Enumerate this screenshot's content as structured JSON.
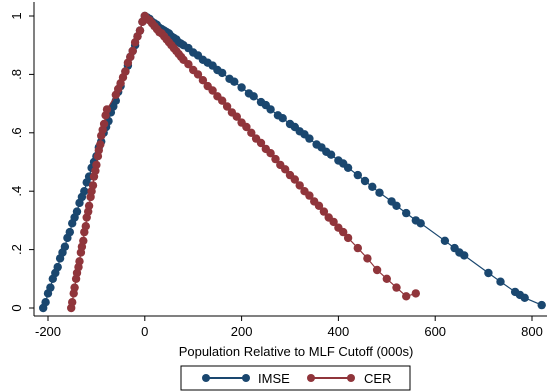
{
  "chart_data": {
    "type": "scatter",
    "xlabel": "Population Relative to MLF Cutoff (000s)",
    "ylabel": "",
    "xlim": [
      -220,
      820
    ],
    "ylim": [
      -0.02,
      1.02
    ],
    "xticks": [
      -200,
      0,
      200,
      400,
      600,
      800
    ],
    "xtick_labels": [
      "-200",
      "0",
      "200",
      "400",
      "600",
      "800"
    ],
    "yticks": [
      0,
      0.2,
      0.4,
      0.6,
      0.8,
      1
    ],
    "ytick_labels": [
      "0",
      ".2",
      ".4",
      ".6",
      ".8",
      "1"
    ],
    "grid": false,
    "legend": "bottom",
    "series": [
      {
        "name": "IMSE",
        "color": "#1a476f",
        "points": [
          [
            -210,
            0.0
          ],
          [
            -205,
            0.02
          ],
          [
            -200,
            0.05
          ],
          [
            -195,
            0.07
          ],
          [
            -190,
            0.1
          ],
          [
            -185,
            0.12
          ],
          [
            -180,
            0.14
          ],
          [
            -175,
            0.17
          ],
          [
            -170,
            0.19
          ],
          [
            -165,
            0.21
          ],
          [
            -160,
            0.24
          ],
          [
            -155,
            0.26
          ],
          [
            -150,
            0.29
          ],
          [
            -145,
            0.31
          ],
          [
            -140,
            0.33
          ],
          [
            -135,
            0.36
          ],
          [
            -130,
            0.38
          ],
          [
            -125,
            0.4
          ],
          [
            -120,
            0.43
          ],
          [
            -115,
            0.45
          ],
          [
            -110,
            0.48
          ],
          [
            -105,
            0.5
          ],
          [
            -100,
            0.52
          ],
          [
            -95,
            0.55
          ],
          [
            -90,
            0.57
          ],
          [
            -85,
            0.6
          ],
          [
            -80,
            0.62
          ],
          [
            -75,
            0.64
          ],
          [
            -70,
            0.67
          ],
          [
            -65,
            0.69
          ],
          [
            -60,
            0.71
          ],
          [
            -55,
            0.74
          ],
          [
            -50,
            0.76
          ],
          [
            -40,
            0.81
          ],
          [
            -35,
            0.83
          ],
          [
            -30,
            0.86
          ],
          [
            -25,
            0.88
          ],
          [
            -20,
            0.9
          ],
          [
            -15,
            0.93
          ],
          [
            -10,
            0.95
          ],
          [
            -5,
            0.98
          ],
          [
            0,
            1.0
          ],
          [
            5,
            0.995
          ],
          [
            10,
            0.99
          ],
          [
            15,
            0.98
          ],
          [
            20,
            0.975
          ],
          [
            25,
            0.97
          ],
          [
            30,
            0.96
          ],
          [
            35,
            0.955
          ],
          [
            40,
            0.95
          ],
          [
            45,
            0.945
          ],
          [
            50,
            0.94
          ],
          [
            55,
            0.93
          ],
          [
            60,
            0.925
          ],
          [
            65,
            0.92
          ],
          [
            70,
            0.91
          ],
          [
            75,
            0.905
          ],
          [
            80,
            0.9
          ],
          [
            90,
            0.89
          ],
          [
            100,
            0.875
          ],
          [
            110,
            0.865
          ],
          [
            120,
            0.85
          ],
          [
            130,
            0.84
          ],
          [
            140,
            0.83
          ],
          [
            150,
            0.815
          ],
          [
            160,
            0.805
          ],
          [
            175,
            0.785
          ],
          [
            185,
            0.775
          ],
          [
            200,
            0.755
          ],
          [
            215,
            0.735
          ],
          [
            225,
            0.725
          ],
          [
            240,
            0.705
          ],
          [
            250,
            0.695
          ],
          [
            260,
            0.68
          ],
          [
            275,
            0.66
          ],
          [
            285,
            0.65
          ],
          [
            300,
            0.63
          ],
          [
            310,
            0.62
          ],
          [
            320,
            0.605
          ],
          [
            330,
            0.595
          ],
          [
            340,
            0.58
          ],
          [
            355,
            0.56
          ],
          [
            365,
            0.55
          ],
          [
            375,
            0.535
          ],
          [
            385,
            0.525
          ],
          [
            400,
            0.505
          ],
          [
            410,
            0.495
          ],
          [
            420,
            0.48
          ],
          [
            440,
            0.455
          ],
          [
            455,
            0.435
          ],
          [
            470,
            0.415
          ],
          [
            485,
            0.395
          ],
          [
            510,
            0.365
          ],
          [
            520,
            0.35
          ],
          [
            540,
            0.325
          ],
          [
            560,
            0.3
          ],
          [
            570,
            0.29
          ],
          [
            620,
            0.23
          ],
          [
            640,
            0.205
          ],
          [
            650,
            0.19
          ],
          [
            660,
            0.18
          ],
          [
            710,
            0.12
          ],
          [
            735,
            0.09
          ],
          [
            765,
            0.055
          ],
          [
            775,
            0.045
          ],
          [
            785,
            0.035
          ],
          [
            820,
            0.01
          ]
        ]
      },
      {
        "name": "CER",
        "color": "#90353b",
        "points": [
          [
            -152,
            0.0
          ],
          [
            -150,
            0.02
          ],
          [
            -147,
            0.05
          ],
          [
            -145,
            0.07
          ],
          [
            -142,
            0.1
          ],
          [
            -140,
            0.12
          ],
          [
            -137,
            0.14
          ],
          [
            -135,
            0.16
          ],
          [
            -132,
            0.19
          ],
          [
            -130,
            0.21
          ],
          [
            -127,
            0.23
          ],
          [
            -125,
            0.26
          ],
          [
            -122,
            0.28
          ],
          [
            -120,
            0.31
          ],
          [
            -117,
            0.33
          ],
          [
            -115,
            0.35
          ],
          [
            -112,
            0.38
          ],
          [
            -110,
            0.4
          ],
          [
            -107,
            0.42
          ],
          [
            -105,
            0.45
          ],
          [
            -102,
            0.47
          ],
          [
            -100,
            0.49
          ],
          [
            -97,
            0.52
          ],
          [
            -95,
            0.54
          ],
          [
            -92,
            0.56
          ],
          [
            -90,
            0.59
          ],
          [
            -87,
            0.61
          ],
          [
            -84,
            0.63
          ],
          [
            -81,
            0.66
          ],
          [
            -78,
            0.68
          ],
          [
            -60,
            0.73
          ],
          [
            -55,
            0.75
          ],
          [
            -50,
            0.77
          ],
          [
            -45,
            0.79
          ],
          [
            -40,
            0.81
          ],
          [
            -35,
            0.84
          ],
          [
            -30,
            0.86
          ],
          [
            -25,
            0.88
          ],
          [
            -20,
            0.91
          ],
          [
            -15,
            0.93
          ],
          [
            -10,
            0.95
          ],
          [
            -5,
            0.98
          ],
          [
            0,
            1.0
          ],
          [
            5,
            0.99
          ],
          [
            10,
            0.985
          ],
          [
            15,
            0.975
          ],
          [
            20,
            0.965
          ],
          [
            25,
            0.955
          ],
          [
            30,
            0.945
          ],
          [
            35,
            0.94
          ],
          [
            40,
            0.93
          ],
          [
            45,
            0.92
          ],
          [
            50,
            0.91
          ],
          [
            55,
            0.9
          ],
          [
            60,
            0.89
          ],
          [
            65,
            0.88
          ],
          [
            70,
            0.87
          ],
          [
            75,
            0.86
          ],
          [
            80,
            0.85
          ],
          [
            90,
            0.835
          ],
          [
            100,
            0.815
          ],
          [
            110,
            0.8
          ],
          [
            120,
            0.78
          ],
          [
            130,
            0.76
          ],
          [
            140,
            0.745
          ],
          [
            150,
            0.725
          ],
          [
            160,
            0.71
          ],
          [
            170,
            0.69
          ],
          [
            180,
            0.67
          ],
          [
            190,
            0.655
          ],
          [
            200,
            0.635
          ],
          [
            210,
            0.62
          ],
          [
            220,
            0.6
          ],
          [
            230,
            0.58
          ],
          [
            240,
            0.565
          ],
          [
            250,
            0.545
          ],
          [
            260,
            0.53
          ],
          [
            270,
            0.51
          ],
          [
            280,
            0.49
          ],
          [
            290,
            0.475
          ],
          [
            300,
            0.455
          ],
          [
            310,
            0.44
          ],
          [
            320,
            0.42
          ],
          [
            330,
            0.4
          ],
          [
            340,
            0.385
          ],
          [
            350,
            0.365
          ],
          [
            360,
            0.35
          ],
          [
            370,
            0.33
          ],
          [
            380,
            0.31
          ],
          [
            390,
            0.295
          ],
          [
            400,
            0.275
          ],
          [
            410,
            0.26
          ],
          [
            420,
            0.24
          ],
          [
            440,
            0.205
          ],
          [
            460,
            0.17
          ],
          [
            480,
            0.13
          ],
          [
            500,
            0.1
          ],
          [
            520,
            0.07
          ],
          [
            540,
            0.04
          ],
          [
            560,
            0.05
          ]
        ]
      }
    ]
  }
}
